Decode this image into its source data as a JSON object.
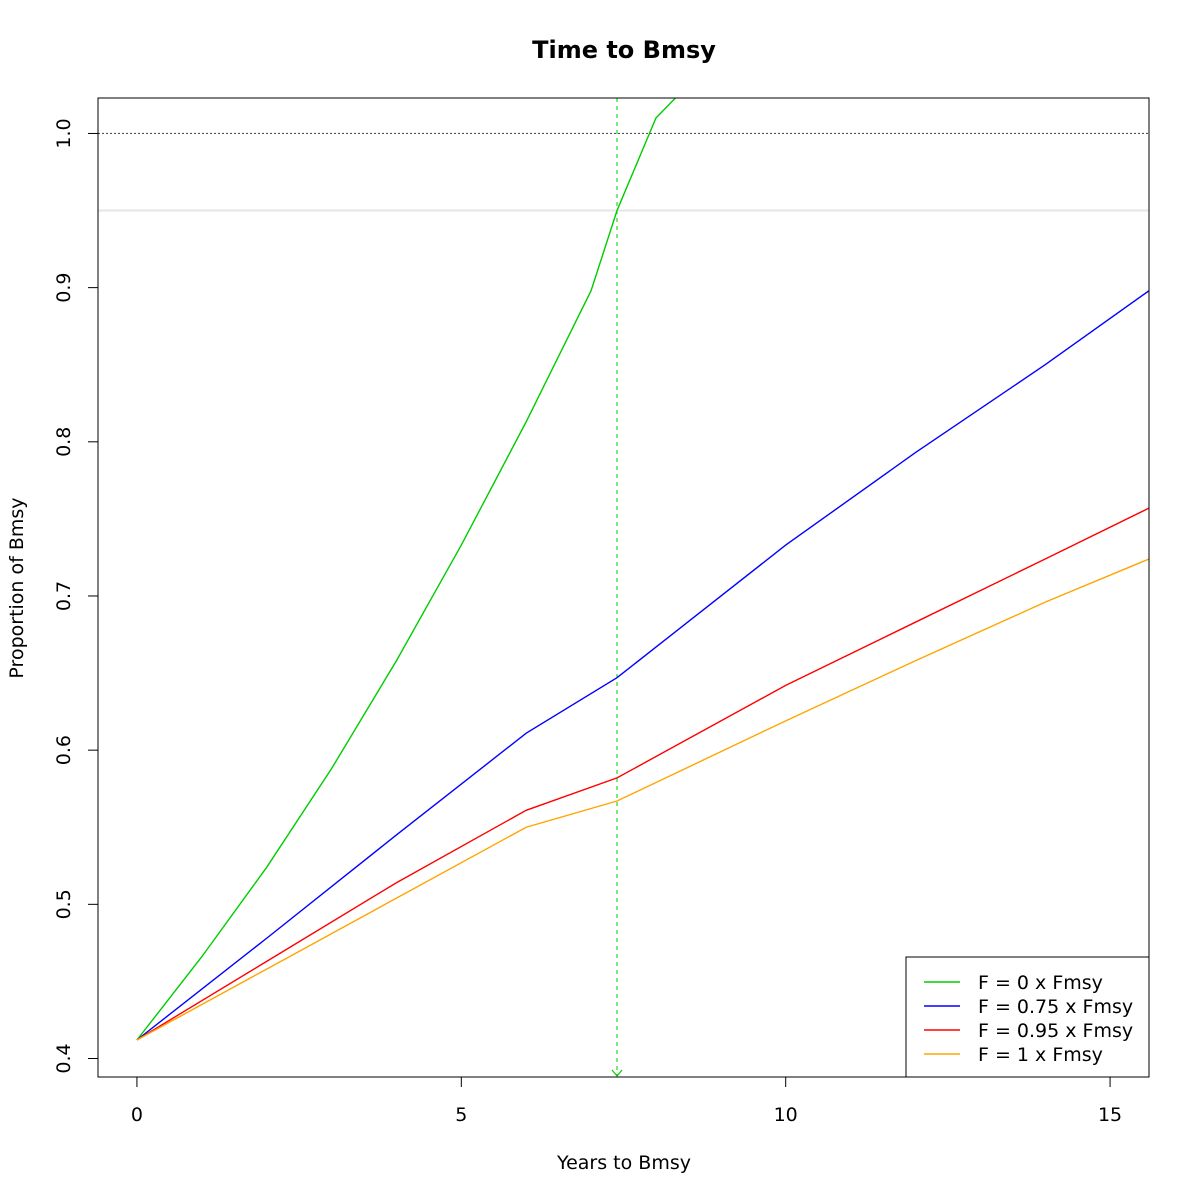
{
  "chart_data": {
    "type": "line",
    "title": "Time to Bmsy",
    "xlabel": "Years to Bmsy",
    "ylabel": "Proportion of Bmsy",
    "xlim": [
      -0.6,
      15.6
    ],
    "ylim": [
      0.388,
      1.023
    ],
    "x_ticks": [
      0,
      5,
      10,
      15
    ],
    "y_ticks": [
      0.4,
      0.5,
      0.6,
      0.7,
      0.8,
      0.9,
      1.0
    ],
    "x_tick_labels": [
      "0",
      "5",
      "10",
      "15"
    ],
    "y_tick_labels": [
      "0.4",
      "0.5",
      "0.6",
      "0.7",
      "0.8",
      "0.9",
      "1.0"
    ],
    "grid": false,
    "legend_position": "bottom-right",
    "reference_lines": [
      {
        "axis": "y",
        "value": 1.0,
        "style": "dotted",
        "color": "#555555"
      },
      {
        "axis": "y",
        "value": 0.95,
        "style": "solid",
        "color": "#e6e6e6"
      },
      {
        "axis": "x",
        "value": 7.4,
        "style": "dashed",
        "color": "#00cd00",
        "arrow": "down"
      }
    ],
    "series": [
      {
        "name": "F = 0 x Fmsy",
        "color": "#00cd00",
        "x": [
          0,
          1,
          2,
          3,
          4,
          5,
          6,
          7,
          7.4,
          8,
          8.3
        ],
        "y": [
          0.412,
          0.466,
          0.524,
          0.588,
          0.658,
          0.733,
          0.813,
          0.898,
          0.95,
          1.01,
          1.023
        ]
      },
      {
        "name": "F = 0.75 x Fmsy",
        "color": "#0000ff",
        "x": [
          0,
          2,
          4,
          6,
          7.4,
          10,
          12,
          14,
          15.6
        ],
        "y": [
          0.412,
          0.478,
          0.545,
          0.611,
          0.647,
          0.733,
          0.793,
          0.85,
          0.898
        ]
      },
      {
        "name": "F = 0.95 x Fmsy",
        "color": "#ff0000",
        "x": [
          0,
          2,
          4,
          6,
          7.4,
          10,
          12,
          14,
          15.6
        ],
        "y": [
          0.412,
          0.463,
          0.514,
          0.561,
          0.582,
          0.642,
          0.683,
          0.724,
          0.757
        ]
      },
      {
        "name": "F = 1 x Fmsy",
        "color": "#ffa500",
        "x": [
          0,
          2,
          4,
          6,
          7.4,
          10,
          12,
          14,
          15.6
        ],
        "y": [
          0.412,
          0.458,
          0.504,
          0.55,
          0.567,
          0.619,
          0.658,
          0.696,
          0.724
        ]
      }
    ]
  }
}
